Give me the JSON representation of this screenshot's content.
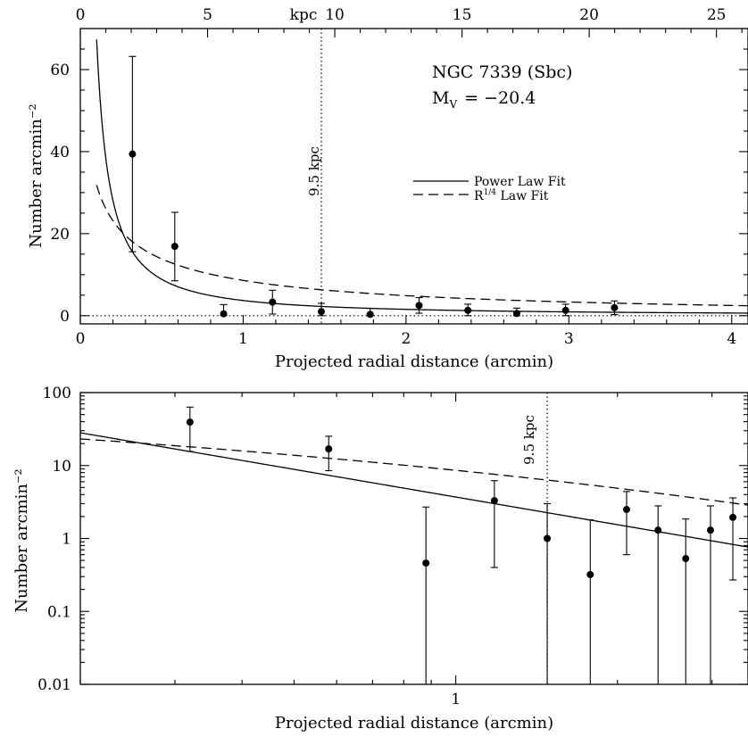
{
  "chart_data": [
    {
      "type": "scatter",
      "panel": "top",
      "xscale": "linear",
      "yscale": "linear",
      "xlim": [
        0,
        4.1
      ],
      "ylim": [
        -2,
        70
      ],
      "xlabel": "Projected radial distance (arcmin)",
      "ylabel": "Number arcmin⁻²",
      "x_ticks": [
        0,
        1,
        2,
        3,
        4
      ],
      "x_tick_labels": [
        "0",
        "1",
        "2",
        "3",
        "4"
      ],
      "y_ticks": [
        0,
        20,
        40,
        60
      ],
      "y_tick_labels": [
        "0",
        "20",
        "40",
        "60"
      ],
      "top_axis": {
        "label": "kpc",
        "ticks_kpc": [
          0,
          5,
          10,
          15,
          20,
          25
        ],
        "tick_labels": [
          "0",
          "5",
          "10",
          "15",
          "20",
          "25"
        ],
        "kpc_per_arcmin": 6.4
      },
      "annotation_title": "NGC 7339 (Sbc)",
      "annotation_mag": {
        "prefix": "M",
        "sub": "V",
        "value": "= −20.4"
      },
      "vline": {
        "x": 1.48,
        "label": "9.5 kpc"
      },
      "hline_y": 0,
      "legend": {
        "placement": "center-right",
        "entries": [
          {
            "label": "Power Law Fit",
            "style": "solid"
          },
          {
            "label": "R",
            "sup": "1/4",
            "suffix": " Law Fit",
            "style": "dashed"
          }
        ]
      },
      "power_law": {
        "amplitude": 3.7,
        "index": -1.26
      },
      "r14_law": {
        "a": 8.6,
        "b": 2.99
      },
      "points": [
        {
          "x": 0.32,
          "y": 39.4,
          "ylo": 15.6,
          "yhi": 63.2
        },
        {
          "x": 0.58,
          "y": 16.9,
          "ylo": 8.5,
          "yhi": 25.2
        },
        {
          "x": 0.88,
          "y": 0.46,
          "ylo": 0,
          "yhi": 2.7
        },
        {
          "x": 1.18,
          "y": 3.3,
          "ylo": 0.4,
          "yhi": 6.2
        },
        {
          "x": 1.48,
          "y": 1.0,
          "ylo": 0,
          "yhi": 3.0
        },
        {
          "x": 1.78,
          "y": 0.32,
          "ylo": 0,
          "yhi": 1.8
        },
        {
          "x": 2.08,
          "y": 2.5,
          "ylo": 0.6,
          "yhi": 4.4
        },
        {
          "x": 2.38,
          "y": 1.3,
          "ylo": 0,
          "yhi": 2.8
        },
        {
          "x": 2.68,
          "y": 0.53,
          "ylo": 0,
          "yhi": 1.85
        },
        {
          "x": 2.98,
          "y": 1.3,
          "ylo": 0,
          "yhi": 2.8
        },
        {
          "x": 3.28,
          "y": 1.95,
          "ylo": 0.27,
          "yhi": 3.6
        }
      ]
    },
    {
      "type": "scatter",
      "panel": "bottom",
      "xscale": "log",
      "yscale": "log",
      "xlim": [
        0.2,
        3.5
      ],
      "ylim": [
        0.01,
        100
      ],
      "xlabel": "Projected radial distance (arcmin)",
      "ylabel": "Number arcmin⁻²",
      "x_tick_labels": [
        {
          "value": 1,
          "label": "1"
        }
      ],
      "y_tick_labels": [
        {
          "value": 0.01,
          "label": "0.01"
        },
        {
          "value": 0.1,
          "label": "0.1"
        },
        {
          "value": 1,
          "label": "1"
        },
        {
          "value": 10,
          "label": "10"
        },
        {
          "value": 100,
          "label": "100"
        }
      ],
      "vline": {
        "x": 1.48,
        "label": "9.5 kpc"
      },
      "fits": [
        "power_law",
        "r14_law"
      ],
      "points_ref": "same as top panel"
    }
  ]
}
